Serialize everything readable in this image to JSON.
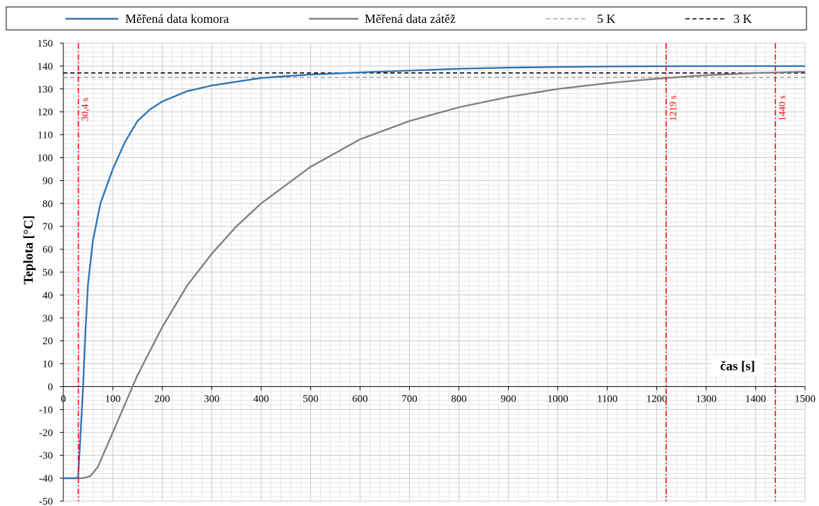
{
  "chart_data": {
    "type": "line",
    "xlabel": "čas [s]",
    "ylabel": "Teplota [°C]",
    "xlim": [
      0,
      1500
    ],
    "ylim": [
      -50,
      150
    ],
    "x_ticks": [
      0,
      100,
      200,
      300,
      400,
      500,
      600,
      700,
      800,
      900,
      1000,
      1100,
      1200,
      1300,
      1400,
      1500
    ],
    "y_ticks": [
      -50,
      -40,
      -30,
      -20,
      -10,
      0,
      10,
      20,
      30,
      40,
      50,
      60,
      70,
      80,
      90,
      100,
      110,
      120,
      130,
      140,
      150
    ],
    "grid": true,
    "minor_grid": true,
    "legend_position": "top",
    "series": [
      {
        "name": "Měřená data komora",
        "color": "#2E75B6",
        "style": "solid",
        "points": [
          [
            0,
            -40
          ],
          [
            25,
            -40
          ],
          [
            30,
            -39.5
          ],
          [
            35,
            -20
          ],
          [
            40,
            0
          ],
          [
            45,
            25
          ],
          [
            50,
            45
          ],
          [
            60,
            64
          ],
          [
            75,
            80
          ],
          [
            100,
            95
          ],
          [
            125,
            107
          ],
          [
            150,
            116
          ],
          [
            175,
            121
          ],
          [
            200,
            124.5
          ],
          [
            250,
            129
          ],
          [
            300,
            131.5
          ],
          [
            400,
            134.8
          ],
          [
            500,
            136.3
          ],
          [
            600,
            137.2
          ],
          [
            700,
            138
          ],
          [
            800,
            138.8
          ],
          [
            900,
            139.3
          ],
          [
            1000,
            139.6
          ],
          [
            1100,
            139.8
          ],
          [
            1200,
            139.9
          ],
          [
            1300,
            139.95
          ],
          [
            1400,
            140
          ],
          [
            1500,
            140
          ]
        ]
      },
      {
        "name": "Měřená data zátěž",
        "color": "#808080",
        "style": "solid",
        "points": [
          [
            0,
            -40
          ],
          [
            40,
            -40
          ],
          [
            55,
            -39
          ],
          [
            70,
            -35
          ],
          [
            100,
            -20
          ],
          [
            130,
            -5
          ],
          [
            150,
            5
          ],
          [
            200,
            26
          ],
          [
            250,
            44
          ],
          [
            300,
            58
          ],
          [
            350,
            70
          ],
          [
            400,
            80
          ],
          [
            500,
            96
          ],
          [
            600,
            108
          ],
          [
            700,
            116
          ],
          [
            800,
            122
          ],
          [
            900,
            126.5
          ],
          [
            1000,
            130
          ],
          [
            1100,
            132.5
          ],
          [
            1200,
            134.5
          ],
          [
            1300,
            136
          ],
          [
            1400,
            137
          ],
          [
            1500,
            137.5
          ]
        ]
      },
      {
        "name": "5 K",
        "color": "#A0A0A0",
        "style": "dashed",
        "points": [
          [
            0,
            135
          ],
          [
            1500,
            135
          ]
        ]
      },
      {
        "name": "3 K",
        "color": "#000000",
        "style": "dashed",
        "points": [
          [
            0,
            137
          ],
          [
            1500,
            137
          ]
        ]
      }
    ],
    "vlines": [
      {
        "x": 30.4,
        "label": "30,4  s",
        "color": "#FF0000"
      },
      {
        "x": 1219,
        "label": "1219  s",
        "color": "#FF0000"
      },
      {
        "x": 1440,
        "label": "1440  s",
        "color": "#FF0000"
      }
    ]
  }
}
